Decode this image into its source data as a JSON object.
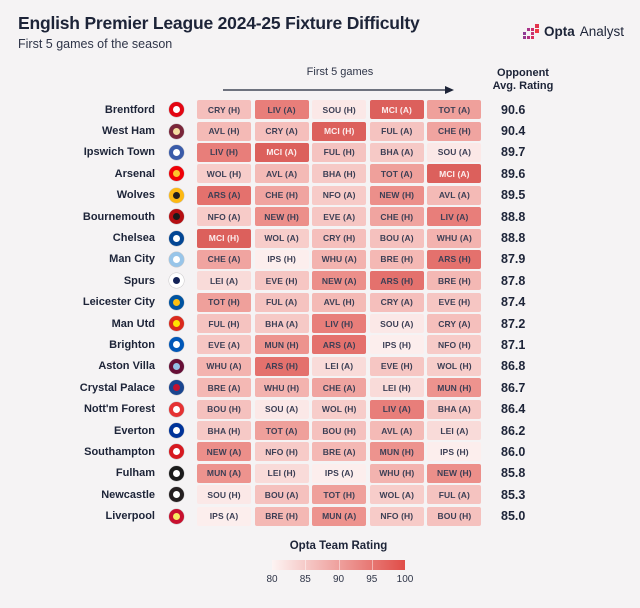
{
  "header": {
    "title": "English Premier League 2024-25 Fixture Difficulty",
    "subtitle": "First 5 games of the season",
    "logo_bold": "Opta",
    "logo_regular": "Analyst"
  },
  "table_header": {
    "games_label": "First 5 games",
    "rating_label_line1": "Opponent",
    "rating_label_line2": "Avg. Rating"
  },
  "legend": {
    "title": "Opta Team Rating",
    "ticks": [
      "80",
      "85",
      "90",
      "95",
      "100"
    ],
    "gradient_start": "#fdf4f3",
    "gradient_end": "#e04d48"
  },
  "colors": {
    "background": "#f5f3f4",
    "text_dark": "#1d2438",
    "cell_text_dark": "#3c3f55",
    "cell_text_light": "#fceeee"
  },
  "opponent_styles": {
    "MCI": {
      "bg": "#dc605c",
      "fg": "light"
    },
    "ARS": {
      "bg": "#e4716d",
      "fg": "dark"
    },
    "LIV": {
      "bg": "#e87e7a",
      "fg": "dark"
    },
    "NEW": {
      "bg": "#ec8f8a",
      "fg": "dark"
    },
    "MUN": {
      "bg": "#ed938e",
      "fg": "dark"
    },
    "TOT": {
      "bg": "#efa09b",
      "fg": "dark"
    },
    "CHE": {
      "bg": "#f0a4a0",
      "fg": "dark"
    },
    "WHU": {
      "bg": "#f3b3af",
      "fg": "dark"
    },
    "BRE": {
      "bg": "#f4b8b4",
      "fg": "dark"
    },
    "AVL": {
      "bg": "#f4bab6",
      "fg": "dark"
    },
    "CRY": {
      "bg": "#f5bfbc",
      "fg": "dark"
    },
    "BOU": {
      "bg": "#f5c1be",
      "fg": "dark"
    },
    "FUL": {
      "bg": "#f5c3c0",
      "fg": "dark"
    },
    "EVE": {
      "bg": "#f6c6c3",
      "fg": "dark"
    },
    "BHA": {
      "bg": "#f6c9c6",
      "fg": "dark"
    },
    "NFO": {
      "bg": "#f7cbc8",
      "fg": "dark"
    },
    "WOL": {
      "bg": "#f7cdca",
      "fg": "dark"
    },
    "LEI": {
      "bg": "#f9dbd9",
      "fg": "dark"
    },
    "SOU": {
      "bg": "#fbe8e7",
      "fg": "dark"
    },
    "IPS": {
      "bg": "#fceeed",
      "fg": "dark"
    }
  },
  "chart_data": {
    "type": "heatmap",
    "title": "English Premier League 2024-25 Fixture Difficulty",
    "subtitle": "First 5 games of the season",
    "xlabel": "First 5 games",
    "value_column_label": "Opponent Avg. Rating",
    "color_scale": {
      "label": "Opta Team Rating",
      "min": 80,
      "max": 100,
      "ticks": [
        80,
        85,
        90,
        95,
        100
      ]
    },
    "rows": [
      {
        "team": "Brentford",
        "crest": {
          "bg": "#e30613",
          "fg": "#ffffff"
        },
        "rating": "90.6",
        "fixtures": [
          {
            "label": "CRY (H)",
            "code": "CRY"
          },
          {
            "label": "LIV (A)",
            "code": "LIV"
          },
          {
            "label": "SOU (H)",
            "code": "SOU"
          },
          {
            "label": "MCI (A)",
            "code": "MCI"
          },
          {
            "label": "TOT (A)",
            "code": "TOT"
          }
        ]
      },
      {
        "team": "West Ham",
        "crest": {
          "bg": "#7a263a",
          "fg": "#f3dca0"
        },
        "rating": "90.4",
        "fixtures": [
          {
            "label": "AVL (H)",
            "code": "AVL"
          },
          {
            "label": "CRY (A)",
            "code": "CRY"
          },
          {
            "label": "MCI (H)",
            "code": "MCI"
          },
          {
            "label": "FUL (A)",
            "code": "FUL"
          },
          {
            "label": "CHE (H)",
            "code": "CHE"
          }
        ]
      },
      {
        "team": "Ipswich Town",
        "crest": {
          "bg": "#3a5ba9",
          "fg": "#ffffff"
        },
        "rating": "89.7",
        "fixtures": [
          {
            "label": "LIV (H)",
            "code": "LIV"
          },
          {
            "label": "MCI (A)",
            "code": "MCI"
          },
          {
            "label": "FUL (H)",
            "code": "FUL"
          },
          {
            "label": "BHA (A)",
            "code": "BHA"
          },
          {
            "label": "SOU (A)",
            "code": "SOU"
          }
        ]
      },
      {
        "team": "Arsenal",
        "crest": {
          "bg": "#ef0107",
          "fg": "#fdc52c"
        },
        "rating": "89.6",
        "fixtures": [
          {
            "label": "WOL (H)",
            "code": "WOL"
          },
          {
            "label": "AVL (A)",
            "code": "AVL"
          },
          {
            "label": "BHA (H)",
            "code": "BHA"
          },
          {
            "label": "TOT (A)",
            "code": "TOT"
          },
          {
            "label": "MCI (A)",
            "code": "MCI"
          }
        ]
      },
      {
        "team": "Wolves",
        "crest": {
          "bg": "#fdb913",
          "fg": "#231f20"
        },
        "rating": "89.5",
        "fixtures": [
          {
            "label": "ARS (A)",
            "code": "ARS"
          },
          {
            "label": "CHE (H)",
            "code": "CHE"
          },
          {
            "label": "NFO (A)",
            "code": "NFO"
          },
          {
            "label": "NEW (H)",
            "code": "NEW"
          },
          {
            "label": "AVL (A)",
            "code": "AVL"
          }
        ]
      },
      {
        "team": "Bournemouth",
        "crest": {
          "bg": "#b50e12",
          "fg": "#1a1a1a"
        },
        "rating": "88.8",
        "fixtures": [
          {
            "label": "NFO (A)",
            "code": "NFO"
          },
          {
            "label": "NEW (H)",
            "code": "NEW"
          },
          {
            "label": "EVE (A)",
            "code": "EVE"
          },
          {
            "label": "CHE (H)",
            "code": "CHE"
          },
          {
            "label": "LIV (A)",
            "code": "LIV"
          }
        ]
      },
      {
        "team": "Chelsea",
        "crest": {
          "bg": "#034694",
          "fg": "#ffffff"
        },
        "rating": "88.8",
        "fixtures": [
          {
            "label": "MCI (H)",
            "code": "MCI"
          },
          {
            "label": "WOL (A)",
            "code": "WOL"
          },
          {
            "label": "CRY (H)",
            "code": "CRY"
          },
          {
            "label": "BOU (A)",
            "code": "BOU"
          },
          {
            "label": "WHU (A)",
            "code": "WHU"
          }
        ]
      },
      {
        "team": "Man City",
        "crest": {
          "bg": "#98c5e9",
          "fg": "#ffffff"
        },
        "rating": "87.9",
        "fixtures": [
          {
            "label": "CHE (A)",
            "code": "CHE"
          },
          {
            "label": "IPS (H)",
            "code": "IPS"
          },
          {
            "label": "WHU (A)",
            "code": "WHU"
          },
          {
            "label": "BRE (H)",
            "code": "BRE"
          },
          {
            "label": "ARS (H)",
            "code": "ARS"
          }
        ]
      },
      {
        "team": "Spurs",
        "crest": {
          "bg": "#ffffff",
          "fg": "#132257"
        },
        "rating": "87.8",
        "fixtures": [
          {
            "label": "LEI (A)",
            "code": "LEI"
          },
          {
            "label": "EVE (H)",
            "code": "EVE"
          },
          {
            "label": "NEW (A)",
            "code": "NEW"
          },
          {
            "label": "ARS (H)",
            "code": "ARS"
          },
          {
            "label": "BRE (H)",
            "code": "BRE"
          }
        ]
      },
      {
        "team": "Leicester City",
        "crest": {
          "bg": "#0053a0",
          "fg": "#fdbe11"
        },
        "rating": "87.4",
        "fixtures": [
          {
            "label": "TOT (H)",
            "code": "TOT"
          },
          {
            "label": "FUL (A)",
            "code": "FUL"
          },
          {
            "label": "AVL (H)",
            "code": "AVL"
          },
          {
            "label": "CRY (A)",
            "code": "CRY"
          },
          {
            "label": "EVE (H)",
            "code": "EVE"
          }
        ]
      },
      {
        "team": "Man Utd",
        "crest": {
          "bg": "#da291c",
          "fg": "#ffe500"
        },
        "rating": "87.2",
        "fixtures": [
          {
            "label": "FUL (H)",
            "code": "FUL"
          },
          {
            "label": "BHA (A)",
            "code": "BHA"
          },
          {
            "label": "LIV (H)",
            "code": "LIV"
          },
          {
            "label": "SOU (A)",
            "code": "SOU"
          },
          {
            "label": "CRY (A)",
            "code": "CRY"
          }
        ]
      },
      {
        "team": "Brighton",
        "crest": {
          "bg": "#0057b8",
          "fg": "#ffffff"
        },
        "rating": "87.1",
        "fixtures": [
          {
            "label": "EVE (A)",
            "code": "EVE"
          },
          {
            "label": "MUN (H)",
            "code": "MUN"
          },
          {
            "label": "ARS (A)",
            "code": "ARS"
          },
          {
            "label": "IPS (H)",
            "code": "IPS"
          },
          {
            "label": "NFO (H)",
            "code": "NFO"
          }
        ]
      },
      {
        "team": "Aston Villa",
        "crest": {
          "bg": "#670e36",
          "fg": "#95bfe5"
        },
        "rating": "86.8",
        "fixtures": [
          {
            "label": "WHU (A)",
            "code": "WHU"
          },
          {
            "label": "ARS (H)",
            "code": "ARS"
          },
          {
            "label": "LEI (A)",
            "code": "LEI"
          },
          {
            "label": "EVE (H)",
            "code": "EVE"
          },
          {
            "label": "WOL (H)",
            "code": "WOL"
          }
        ]
      },
      {
        "team": "Crystal Palace",
        "crest": {
          "bg": "#1b458f",
          "fg": "#c4122e"
        },
        "rating": "86.7",
        "fixtures": [
          {
            "label": "BRE (A)",
            "code": "BRE"
          },
          {
            "label": "WHU (H)",
            "code": "WHU"
          },
          {
            "label": "CHE (A)",
            "code": "CHE"
          },
          {
            "label": "LEI (H)",
            "code": "LEI"
          },
          {
            "label": "MUN (H)",
            "code": "MUN"
          }
        ]
      },
      {
        "team": "Nott'm Forest",
        "crest": {
          "bg": "#e53233",
          "fg": "#ffffff"
        },
        "rating": "86.4",
        "fixtures": [
          {
            "label": "BOU (H)",
            "code": "BOU"
          },
          {
            "label": "SOU (A)",
            "code": "SOU"
          },
          {
            "label": "WOL (H)",
            "code": "WOL"
          },
          {
            "label": "LIV (A)",
            "code": "LIV"
          },
          {
            "label": "BHA (A)",
            "code": "BHA"
          }
        ]
      },
      {
        "team": "Everton",
        "crest": {
          "bg": "#003399",
          "fg": "#ffffff"
        },
        "rating": "86.2",
        "fixtures": [
          {
            "label": "BHA (H)",
            "code": "BHA"
          },
          {
            "label": "TOT (A)",
            "code": "TOT"
          },
          {
            "label": "BOU (H)",
            "code": "BOU"
          },
          {
            "label": "AVL (A)",
            "code": "AVL"
          },
          {
            "label": "LEI (A)",
            "code": "LEI"
          }
        ]
      },
      {
        "team": "Southampton",
        "crest": {
          "bg": "#d71920",
          "fg": "#ffffff"
        },
        "rating": "86.0",
        "fixtures": [
          {
            "label": "NEW (A)",
            "code": "NEW"
          },
          {
            "label": "NFO (H)",
            "code": "NFO"
          },
          {
            "label": "BRE (A)",
            "code": "BRE"
          },
          {
            "label": "MUN (H)",
            "code": "MUN"
          },
          {
            "label": "IPS (H)",
            "code": "IPS"
          }
        ]
      },
      {
        "team": "Fulham",
        "crest": {
          "bg": "#1b1b1b",
          "fg": "#ffffff"
        },
        "rating": "85.8",
        "fixtures": [
          {
            "label": "MUN (A)",
            "code": "MUN"
          },
          {
            "label": "LEI (H)",
            "code": "LEI"
          },
          {
            "label": "IPS (A)",
            "code": "IPS"
          },
          {
            "label": "WHU (H)",
            "code": "WHU"
          },
          {
            "label": "NEW (H)",
            "code": "NEW"
          }
        ]
      },
      {
        "team": "Newcastle",
        "crest": {
          "bg": "#241f20",
          "fg": "#ffffff"
        },
        "rating": "85.3",
        "fixtures": [
          {
            "label": "SOU (H)",
            "code": "SOU"
          },
          {
            "label": "BOU (A)",
            "code": "BOU"
          },
          {
            "label": "TOT (H)",
            "code": "TOT"
          },
          {
            "label": "WOL (A)",
            "code": "WOL"
          },
          {
            "label": "FUL (A)",
            "code": "FUL"
          }
        ]
      },
      {
        "team": "Liverpool",
        "crest": {
          "bg": "#c8102e",
          "fg": "#f6eb61"
        },
        "rating": "85.0",
        "fixtures": [
          {
            "label": "IPS (A)",
            "code": "IPS"
          },
          {
            "label": "BRE (H)",
            "code": "BRE"
          },
          {
            "label": "MUN (A)",
            "code": "MUN"
          },
          {
            "label": "NFO (H)",
            "code": "NFO"
          },
          {
            "label": "BOU (H)",
            "code": "BOU"
          }
        ]
      }
    ]
  }
}
